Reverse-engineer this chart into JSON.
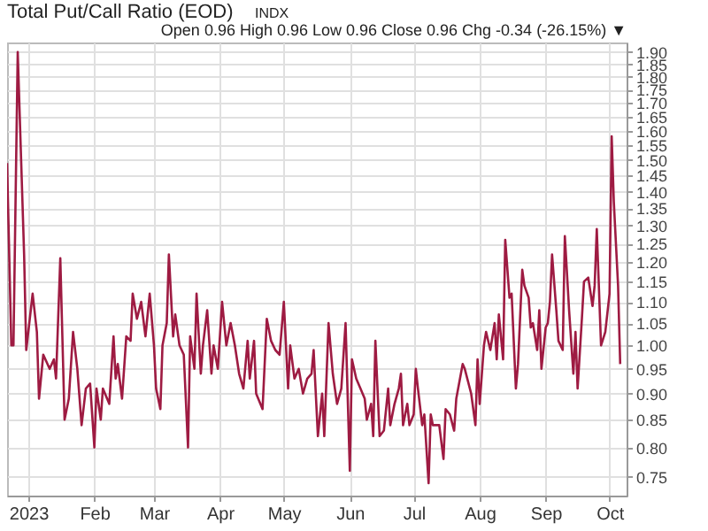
{
  "chart_data": {
    "type": "line",
    "title": "Total Put/Call Ratio (EOD)",
    "subtitle": "INDX",
    "annotations": [
      "Open 0.96 High 0.96 Low 0.96 Close 0.96 Chg -0.34 (-26.15%) ▼"
    ],
    "series": [
      {
        "color": "#9e1b42",
        "x": [
          "2022-12-22",
          "2022-12-24",
          "2022-12-25",
          "2022-12-27",
          "2022-12-30",
          "2022-12-31",
          "2023-01-03",
          "2023-01-05",
          "2023-01-06",
          "2023-01-08",
          "2023-01-11",
          "2023-01-13",
          "2023-01-14",
          "2023-01-16",
          "2023-01-18",
          "2023-01-20",
          "2023-01-22",
          "2023-01-24",
          "2023-01-26",
          "2023-01-28",
          "2023-01-30",
          "2023-02-01",
          "2023-02-02",
          "2023-02-04",
          "2023-02-05",
          "2023-02-07",
          "2023-02-08",
          "2023-02-10",
          "2023-02-11",
          "2023-02-12",
          "2023-02-14",
          "2023-02-16",
          "2023-02-18",
          "2023-02-19",
          "2023-02-21",
          "2023-02-23",
          "2023-02-25",
          "2023-02-27",
          "2023-03-01",
          "2023-03-02",
          "2023-03-04",
          "2023-03-05",
          "2023-03-07",
          "2023-03-08",
          "2023-03-10",
          "2023-03-11",
          "2023-03-13",
          "2023-03-15",
          "2023-03-17",
          "2023-03-18",
          "2023-03-20",
          "2023-03-21",
          "2023-03-23",
          "2023-03-24",
          "2023-03-26",
          "2023-03-28",
          "2023-03-29",
          "2023-03-31",
          "2023-04-02",
          "2023-04-04",
          "2023-04-06",
          "2023-04-08",
          "2023-04-10",
          "2023-04-12",
          "2023-04-14",
          "2023-04-15",
          "2023-04-17",
          "2023-04-18",
          "2023-04-21",
          "2023-04-23",
          "2023-04-25",
          "2023-04-27",
          "2023-04-29",
          "2023-05-01",
          "2023-05-03",
          "2023-05-04",
          "2023-05-06",
          "2023-05-08",
          "2023-05-10",
          "2023-05-12",
          "2023-05-14",
          "2023-05-15",
          "2023-05-17",
          "2023-05-19",
          "2023-05-20",
          "2023-05-22",
          "2023-05-24",
          "2023-05-26",
          "2023-05-28",
          "2023-05-30",
          "2023-06-01",
          "2023-06-02",
          "2023-06-04",
          "2023-06-06",
          "2023-06-08",
          "2023-06-09",
          "2023-06-11",
          "2023-06-12",
          "2023-06-13",
          "2023-06-15",
          "2023-06-17",
          "2023-06-19",
          "2023-06-20",
          "2023-06-22",
          "2023-06-24",
          "2023-06-25",
          "2023-06-26",
          "2023-06-28",
          "2023-06-29",
          "2023-07-01",
          "2023-07-02",
          "2023-07-03",
          "2023-07-05",
          "2023-07-06",
          "2023-07-08",
          "2023-07-09",
          "2023-07-10",
          "2023-07-12",
          "2023-07-13",
          "2023-07-15",
          "2023-07-16",
          "2023-07-18",
          "2023-07-20",
          "2023-07-21",
          "2023-07-24",
          "2023-07-25",
          "2023-07-28",
          "2023-07-30",
          "2023-07-31",
          "2023-08-01",
          "2023-08-03",
          "2023-08-04",
          "2023-08-06",
          "2023-08-08",
          "2023-08-09",
          "2023-08-10",
          "2023-08-12",
          "2023-08-13",
          "2023-08-15",
          "2023-08-16",
          "2023-08-18",
          "2023-08-19",
          "2023-08-21",
          "2023-08-22",
          "2023-08-24",
          "2023-08-25",
          "2023-08-26",
          "2023-08-28",
          "2023-08-29",
          "2023-08-30",
          "2023-09-01",
          "2023-09-02",
          "2023-09-03",
          "2023-09-04",
          "2023-09-06",
          "2023-09-07",
          "2023-09-09",
          "2023-09-10",
          "2023-09-12",
          "2023-09-14",
          "2023-09-15",
          "2023-09-16",
          "2023-09-18",
          "2023-09-19",
          "2023-09-21",
          "2023-09-23",
          "2023-09-24",
          "2023-09-25",
          "2023-09-27",
          "2023-09-29",
          "2023-10-01",
          "2023-10-02",
          "2023-10-03",
          "2023-10-05",
          "2023-10-06"
        ],
        "values": [
          1.49,
          1.0,
          1.0,
          1.9,
          1.22,
          0.99,
          1.12,
          1.03,
          0.89,
          0.98,
          0.95,
          0.97,
          0.93,
          1.21,
          0.85,
          0.89,
          1.03,
          0.95,
          0.84,
          0.91,
          0.92,
          0.8,
          0.91,
          0.85,
          0.91,
          0.89,
          0.88,
          1.02,
          0.93,
          0.96,
          0.89,
          1.02,
          1.01,
          1.12,
          1.06,
          1.1,
          1.02,
          1.12,
          1.0,
          0.91,
          0.87,
          1.0,
          1.05,
          1.22,
          1.02,
          1.07,
          1.0,
          0.98,
          0.8,
          1.02,
          0.95,
          1.12,
          0.94,
          1.0,
          1.08,
          0.94,
          1.0,
          0.95,
          1.1,
          1.0,
          1.05,
          1.0,
          0.94,
          0.91,
          1.01,
          0.93,
          1.01,
          0.9,
          0.87,
          1.06,
          1.01,
          0.99,
          0.98,
          1.1,
          0.91,
          1.0,
          0.93,
          0.95,
          0.9,
          0.93,
          0.94,
          0.99,
          0.82,
          0.9,
          0.82,
          1.05,
          0.94,
          0.88,
          0.91,
          1.05,
          0.76,
          0.97,
          0.93,
          0.91,
          0.89,
          0.85,
          0.88,
          0.82,
          1.01,
          0.82,
          0.83,
          0.91,
          0.84,
          0.88,
          0.91,
          0.94,
          0.84,
          0.88,
          0.84,
          0.86,
          0.95,
          0.91,
          0.84,
          0.86,
          0.74,
          0.86,
          0.84,
          0.84,
          0.84,
          0.78,
          0.87,
          0.86,
          0.83,
          0.89,
          0.96,
          0.95,
          0.9,
          0.84,
          0.97,
          0.88,
          1.0,
          1.03,
          0.99,
          1.05,
          0.97,
          1.07,
          0.97,
          1.26,
          1.11,
          1.12,
          0.91,
          0.96,
          1.18,
          1.14,
          1.11,
          1.04,
          1.05,
          0.99,
          1.08,
          0.95,
          1.04,
          1.05,
          1.1,
          1.22,
          1.08,
          1.01,
          0.99,
          1.27,
          1.08,
          0.94,
          1.03,
          0.91,
          1.06,
          1.15,
          1.16,
          1.09,
          1.14,
          1.29,
          1.0,
          1.03,
          1.12,
          1.58,
          1.37,
          1.14,
          0.96
        ]
      }
    ],
    "xlim": [
      "2022-12-22",
      "2023-10-09"
    ],
    "xticks": [
      {
        "value": "2023-01-01",
        "label": "2023"
      },
      {
        "value": "2023-02-01",
        "label": "Feb"
      },
      {
        "value": "2023-03-01",
        "label": "Mar"
      },
      {
        "value": "2023-04-01",
        "label": "Apr"
      },
      {
        "value": "2023-05-01",
        "label": "May"
      },
      {
        "value": "2023-06-01",
        "label": "Jun"
      },
      {
        "value": "2023-07-01",
        "label": "Jul"
      },
      {
        "value": "2023-08-01",
        "label": "Aug"
      },
      {
        "value": "2023-09-01",
        "label": "Sep"
      },
      {
        "value": "2023-10-01",
        "label": "Oct"
      }
    ],
    "log": true,
    "ylim": [
      0.72,
      1.94
    ],
    "yticks": [
      0.75,
      {
        "value": 0.8,
        "label": "0.80"
      },
      0.85,
      {
        "value": 0.9,
        "label": "0.90"
      },
      0.95,
      {
        "value": 1,
        "label": "1.00"
      },
      1.05,
      {
        "value": 1.1,
        "label": "1.10"
      },
      1.15,
      {
        "value": 1.2,
        "label": "1.20"
      },
      1.25,
      {
        "value": 1.3,
        "label": "1.30"
      },
      1.35,
      {
        "value": 1.4,
        "label": "1.40"
      },
      1.45,
      {
        "value": 1.5,
        "label": "1.50"
      },
      1.55,
      {
        "value": 1.6,
        "label": "1.60"
      },
      1.65,
      {
        "value": 1.7,
        "label": "1.70"
      },
      1.75,
      {
        "value": 1.8,
        "label": "1.80"
      },
      1.85,
      {
        "value": 1.9,
        "label": "1.90"
      }
    ],
    "grid": true
  }
}
